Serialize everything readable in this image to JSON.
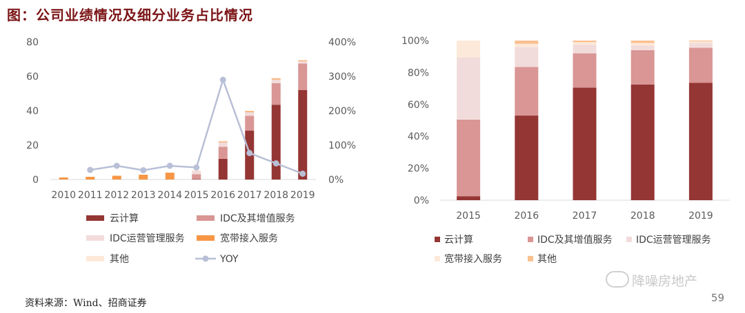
{
  "title": "图：公司业绩情况及细分业务占比情况",
  "source": "资料来源：Wind、招商证券",
  "page_number": "59",
  "watermark": "降噪房地产",
  "colors": {
    "cloud": "#943634",
    "idc_value_added": "#d99694",
    "idc_ops": "#f2dcdb",
    "broadband": "#f79646",
    "other": "#fde9d9",
    "other_right": "#fac090",
    "yoy": "#b8bfd6"
  },
  "chart_data": [
    {
      "type": "bar",
      "stacked": true,
      "categories": [
        "2010",
        "2011",
        "2012",
        "2013",
        "2014",
        "2015",
        "2016",
        "2017",
        "2018",
        "2019"
      ],
      "ylim": [
        0,
        80
      ],
      "yticks": [
        "0",
        "20",
        "40",
        "60",
        "80"
      ],
      "y2lim": [
        0,
        400
      ],
      "y2ticks": [
        "0%",
        "100%",
        "200%",
        "300%",
        "400%"
      ],
      "series": [
        {
          "name": "云计算",
          "color": "#943634",
          "values": [
            0,
            0,
            0,
            0,
            0,
            0.3,
            12,
            28.5,
            43.5,
            52
          ]
        },
        {
          "name": "IDC及其增值服务",
          "color": "#d99694",
          "values": [
            0,
            0,
            0,
            0,
            0,
            2.8,
            7,
            8.5,
            12.5,
            15.5
          ]
        },
        {
          "name": "IDC运营管理服务",
          "color": "#f2dcdb",
          "values": [
            0,
            0,
            0,
            0,
            0,
            2.1,
            2.7,
            2.2,
            2.2,
            1.4
          ]
        },
        {
          "name": "宽带接入服务",
          "color": "#f79646",
          "values": [
            1.2,
            1.6,
            2.2,
            2.8,
            4.0,
            0,
            0.4,
            0.5,
            0.5,
            0.4
          ]
        },
        {
          "name": "其他",
          "color": "#fde9d9",
          "values": [
            0,
            0,
            0,
            0,
            0,
            0.1,
            0.5,
            0.5,
            0.5,
            0.4
          ]
        }
      ],
      "line": {
        "name": "YOY",
        "color": "#b8bfd6",
        "x_start_index": 1,
        "values": [
          28,
          40,
          27,
          40,
          35,
          290,
          77,
          47,
          17
        ]
      },
      "legend": [
        "云计算",
        "IDC及其增值服务",
        "IDC运营管理服务",
        "宽带接入服务",
        "其他",
        "YOY"
      ]
    },
    {
      "type": "bar",
      "stacked": true,
      "percent": true,
      "categories": [
        "2015",
        "2016",
        "2017",
        "2018",
        "2019"
      ],
      "ylim": [
        0,
        100
      ],
      "yticks": [
        "0%",
        "20%",
        "40%",
        "60%",
        "80%",
        "100%"
      ],
      "series": [
        {
          "name": "云计算",
          "color": "#943634",
          "values": [
            2.5,
            53,
            70.5,
            72.5,
            73.5
          ]
        },
        {
          "name": "IDC及其增值服务",
          "color": "#d99694",
          "values": [
            48,
            30.5,
            21.5,
            21.5,
            22
          ]
        },
        {
          "name": "IDC运营管理服务",
          "color": "#f2dcdb",
          "values": [
            39,
            12.5,
            5.5,
            3,
            3
          ]
        },
        {
          "name": "宽带接入服务",
          "color": "#fde9d9",
          "values": [
            10.5,
            2,
            1.5,
            1.5,
            1
          ]
        },
        {
          "name": "其他",
          "color": "#fac090",
          "values": [
            0,
            2,
            1,
            1.5,
            0.5
          ]
        }
      ],
      "legend": [
        "云计算",
        "IDC及其增值服务",
        "IDC运营管理服务",
        "宽带接入服务",
        "其他"
      ]
    }
  ]
}
